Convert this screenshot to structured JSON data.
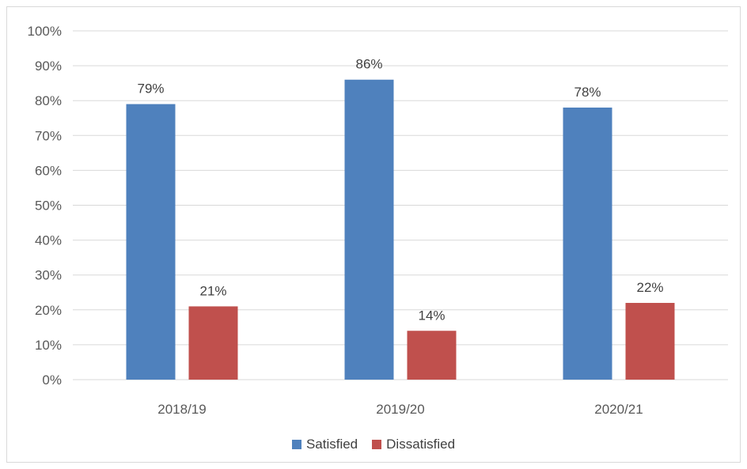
{
  "chart_data": {
    "type": "bar",
    "categories": [
      "2018/19",
      "2019/20",
      "2020/21"
    ],
    "series": [
      {
        "name": "Satisfied",
        "values": [
          79,
          86,
          78
        ],
        "labels": [
          "79%",
          "86%",
          "78%"
        ],
        "color": "#4f81bd"
      },
      {
        "name": "Dissatisfied",
        "values": [
          21,
          14,
          22
        ],
        "labels": [
          "21%",
          "14%",
          "22%"
        ],
        "color": "#c0504d"
      }
    ],
    "y_ticks": [
      "0%",
      "10%",
      "20%",
      "30%",
      "40%",
      "50%",
      "60%",
      "70%",
      "80%",
      "90%",
      "100%"
    ],
    "ylim": [
      0,
      100
    ],
    "grid": true,
    "legend_position": "bottom"
  }
}
